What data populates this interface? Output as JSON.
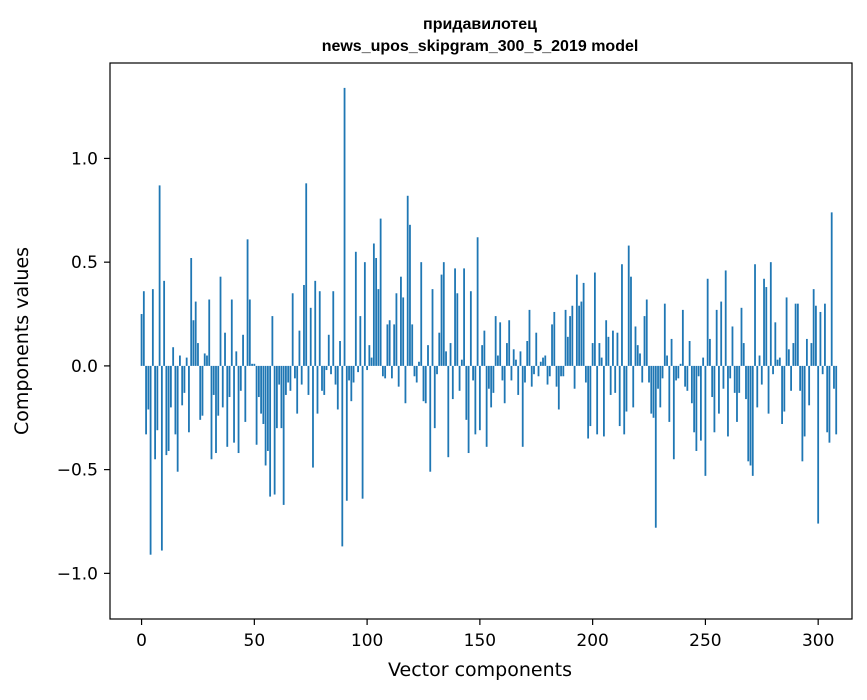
{
  "chart_data": {
    "type": "bar",
    "title": "придавилотец",
    "subtitle": "news_upos_skipgram_300_5_2019 model",
    "xlabel": "Vector components",
    "ylabel": "Components values",
    "xlim": [
      -14,
      315
    ],
    "ylim": [
      -1.22,
      1.46
    ],
    "x_ticks": [
      0,
      50,
      100,
      150,
      200,
      250,
      300
    ],
    "x_tick_labels": [
      "0",
      "50",
      "100",
      "150",
      "200",
      "250",
      "300"
    ],
    "y_ticks": [
      -1.0,
      -0.5,
      0.0,
      0.5,
      1.0
    ],
    "y_tick_labels": [
      "−1.0",
      "−0.5",
      "0.0",
      "0.5",
      "1.0"
    ],
    "bar_color": "#1f77b4",
    "grid": false,
    "series": [
      {
        "values": [
          0.25,
          0.36,
          -0.33,
          -0.21,
          -0.91,
          0.37,
          -0.45,
          -0.31,
          0.87,
          -0.89,
          0.41,
          -0.43,
          -0.41,
          -0.2,
          0.09,
          -0.33,
          -0.51,
          0.05,
          -0.19,
          -0.13,
          0.04,
          -0.32,
          0.52,
          0.22,
          0.31,
          0.11,
          -0.26,
          -0.24,
          0.06,
          0.05,
          0.32,
          -0.45,
          -0.14,
          -0.42,
          -0.24,
          0.43,
          -0.2,
          0.16,
          -0.39,
          -0.15,
          0.32,
          -0.37,
          0.07,
          -0.42,
          -0.12,
          0.15,
          -0.27,
          0.61,
          0.32,
          0.01,
          0.01,
          -0.38,
          -0.15,
          -0.23,
          -0.28,
          -0.48,
          -0.41,
          -0.63,
          0.24,
          -0.62,
          -0.3,
          -0.09,
          -0.3,
          -0.67,
          -0.14,
          -0.08,
          -0.12,
          0.35,
          -0.06,
          -0.23,
          0.17,
          -0.09,
          0.39,
          0.88,
          -0.14,
          0.28,
          -0.49,
          0.41,
          -0.23,
          0.36,
          -0.12,
          -0.14,
          -0.02,
          0.15,
          -0.04,
          0.36,
          -0.09,
          -0.21,
          0.12,
          -0.87,
          1.34,
          -0.65,
          -0.07,
          -0.17,
          -0.08,
          0.55,
          -0.03,
          0.24,
          -0.64,
          0.5,
          -0.02,
          0.1,
          0.04,
          0.59,
          0.52,
          0.37,
          0.71,
          -0.05,
          -0.06,
          0.2,
          0.22,
          -0.06,
          0.2,
          0.35,
          -0.1,
          0.43,
          0.33,
          -0.18,
          0.82,
          0.68,
          0.2,
          -0.05,
          -0.08,
          0.02,
          0.5,
          -0.17,
          -0.18,
          0.1,
          -0.51,
          0.37,
          -0.3,
          -0.04,
          0.16,
          0.44,
          0.5,
          0.07,
          -0.44,
          0.11,
          -0.16,
          0.47,
          0.35,
          -0.12,
          0.03,
          0.47,
          -0.26,
          -0.42,
          0.36,
          -0.07,
          -0.33,
          0.62,
          -0.31,
          0.1,
          0.17,
          -0.39,
          -0.11,
          -0.2,
          -0.13,
          0.24,
          0.05,
          0.21,
          -0.07,
          -0.18,
          0.11,
          0.22,
          -0.07,
          0.08,
          0.03,
          -0.14,
          0.07,
          -0.39,
          -0.08,
          0.12,
          0.27,
          -0.1,
          -0.04,
          0.16,
          -0.05,
          0.02,
          0.04,
          0.05,
          -0.09,
          -0.05,
          0.2,
          0.26,
          -0.1,
          -0.21,
          -0.05,
          -0.05,
          0.27,
          0.14,
          0.24,
          0.29,
          -0.11,
          0.44,
          0.29,
          0.31,
          0.4,
          -0.08,
          -0.35,
          -0.29,
          0.11,
          0.45,
          -0.33,
          0.11,
          0.04,
          -0.34,
          0.22,
          0.14,
          -0.14,
          0.17,
          -0.13,
          0.16,
          -0.29,
          0.49,
          -0.33,
          -0.22,
          0.58,
          0.43,
          -0.2,
          0.19,
          0.1,
          0.06,
          -0.08,
          0.24,
          0.32,
          -0.08,
          -0.23,
          -0.25,
          -0.78,
          -0.11,
          -0.2,
          -0.06,
          0.3,
          0.05,
          -0.27,
          0.13,
          -0.45,
          -0.07,
          -0.06,
          0.01,
          0.27,
          -0.1,
          -0.12,
          0.12,
          -0.18,
          -0.32,
          -0.41,
          -0.05,
          -0.36,
          0.04,
          -0.53,
          0.42,
          0.13,
          -0.15,
          -0.32,
          0.27,
          -0.23,
          0.31,
          -0.11,
          0.46,
          -0.34,
          -0.06,
          0.19,
          -0.13,
          -0.27,
          -0.13,
          0.28,
          0.11,
          -0.16,
          -0.46,
          -0.48,
          -0.53,
          0.49,
          -0.2,
          0.05,
          -0.09,
          0.42,
          0.38,
          -0.23,
          0.5,
          -0.04,
          0.21,
          0.03,
          0.04,
          -0.28,
          -0.22,
          0.33,
          0.08,
          -0.12,
          0.11,
          0.3,
          0.3,
          -0.12,
          -0.46,
          -0.34,
          0.13,
          -0.19,
          0.11,
          0.37,
          0.29,
          -0.76,
          0.26,
          -0.04,
          0.3,
          -0.32,
          -0.37,
          0.74,
          -0.11,
          -0.33
        ]
      }
    ]
  }
}
